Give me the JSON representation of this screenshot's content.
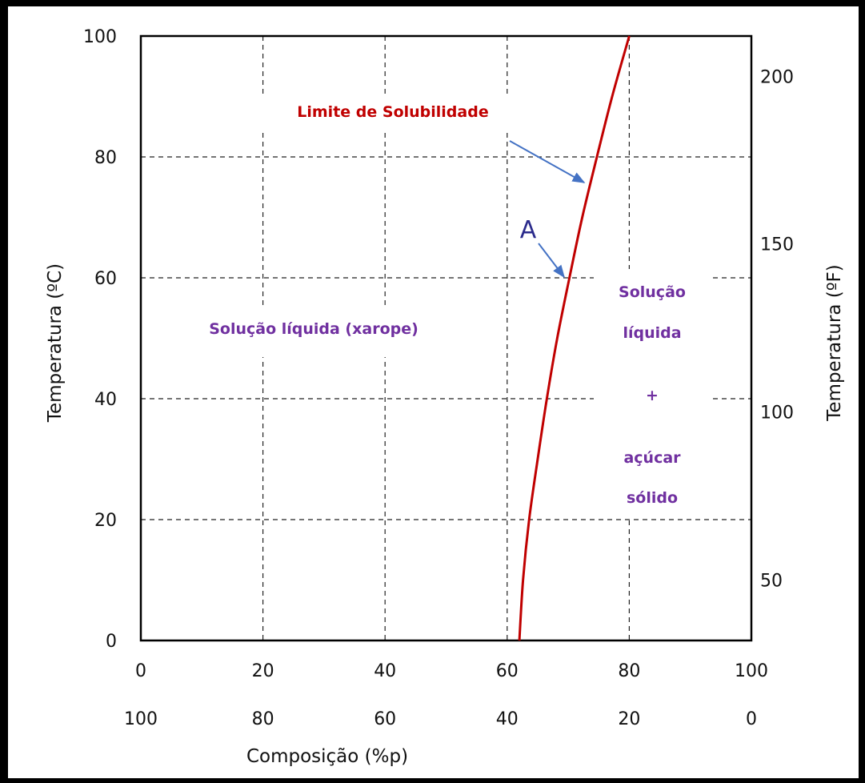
{
  "chart_data": {
    "type": "line",
    "xlabel": "Composição (%p)",
    "ylabel": "Temperatura (ºC)",
    "ylabel_right": "Temperatura (ºF)",
    "xlim": [
      0,
      100
    ],
    "ylim": [
      0,
      100
    ],
    "x_ticks_top": [
      "0",
      "20",
      "40",
      "60",
      "80",
      "100"
    ],
    "x_ticks_bottom": [
      "100",
      "80",
      "60",
      "40",
      "20",
      "0"
    ],
    "y_ticks_left": [
      "0",
      "20",
      "40",
      "60",
      "80",
      "100"
    ],
    "y_ticks_right": [
      {
        "label": "50",
        "celsius": 10
      },
      {
        "label": "100",
        "celsius": 37.8
      },
      {
        "label": "150",
        "celsius": 65.6
      },
      {
        "label": "200",
        "celsius": 93.3
      }
    ],
    "grid": true,
    "series": [
      {
        "color": "#c00000",
        "x": [
          62,
          62.6,
          63.6,
          65,
          66.5,
          68.2,
          70.2,
          72.3,
          74.7,
          77.2,
          80
        ],
        "y": [
          0,
          10,
          20,
          30,
          40,
          50,
          60,
          70,
          80,
          90,
          100
        ]
      }
    ],
    "annotations": {
      "curve_label": "Limite de Solubilidade",
      "point_label": "A",
      "point": [
        69.5,
        60
      ],
      "region_left": "Solução líquida (xarope)",
      "region_right_lines": [
        "Solução",
        "líquida",
        "+",
        "açúcar",
        "sólido"
      ]
    }
  }
}
